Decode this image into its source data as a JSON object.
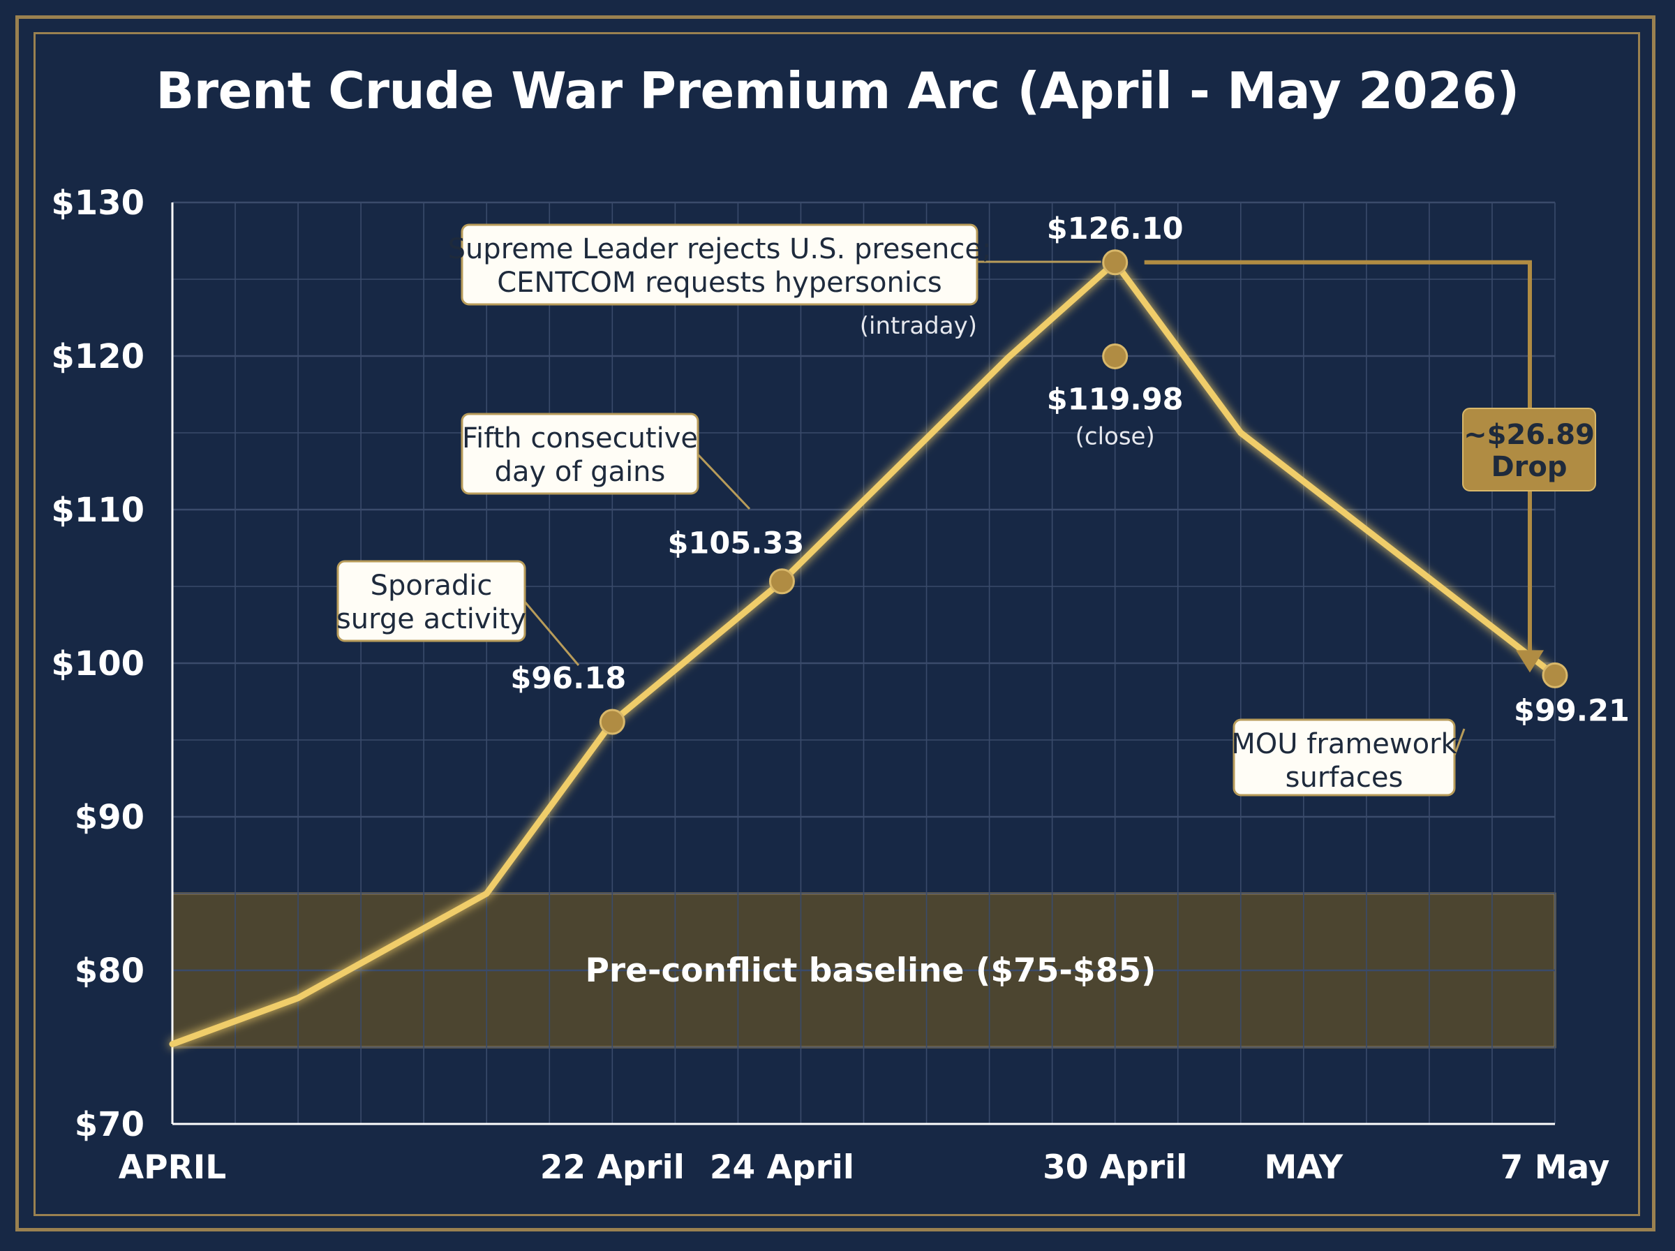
{
  "chart_data": {
    "type": "line",
    "title": "Brent Crude War Premium Arc (April - May 2026)",
    "y_ticks": [
      "$70",
      "$80",
      "$90",
      "$100",
      "$110",
      "$120",
      "$130"
    ],
    "ylim": [
      70,
      130
    ],
    "x_tick_labels": [
      {
        "label": "APRIL",
        "x": 1
      },
      {
        "label": "22 April",
        "x": 8
      },
      {
        "label": "24 April",
        "x": 10.7
      },
      {
        "label": "30 April",
        "x": 16
      },
      {
        "label": "MAY",
        "x": 19
      },
      {
        "label": "7 May",
        "x": 23
      }
    ],
    "xlim": [
      1,
      23
    ],
    "grid": true,
    "series": [
      {
        "values": [
          {
            "x": 1,
            "y": 75.2
          },
          {
            "x": 3,
            "y": 78.2
          },
          {
            "x": 6,
            "y": 85
          },
          {
            "x": 8,
            "y": 96.18
          },
          {
            "x": 10.7,
            "y": 105.33
          },
          {
            "x": 14.3,
            "y": 119.9
          },
          {
            "x": 16,
            "y": 126.1
          },
          {
            "x": 18,
            "y": 115
          },
          {
            "x": 23,
            "y": 99.21
          }
        ],
        "color": "#f0cd6a"
      }
    ],
    "bands": [
      {
        "y0": 75,
        "y1": 85,
        "label": "Pre-conflict baseline ($75-$85)",
        "color": "#4c4530"
      }
    ],
    "markers": [
      {
        "x": 8,
        "y": 96.18,
        "label": "$96.18"
      },
      {
        "x": 10.7,
        "y": 105.33,
        "label": "$105.33"
      },
      {
        "x": 16,
        "y": 126.1,
        "label": "$126.10"
      },
      {
        "x": 16,
        "y": 119.98,
        "label": "$119.98",
        "sublabel": "(close)"
      },
      {
        "x": 23,
        "y": 99.21,
        "label": "$99.21"
      }
    ],
    "annotations": [
      {
        "lines": [
          "Sporadic",
          "surge activity"
        ],
        "target_x": 8,
        "target_y": 96.18
      },
      {
        "lines": [
          "Fifth consecutive",
          "day of gains"
        ],
        "target_x": 10.7,
        "target_y": 105.33
      },
      {
        "lines": [
          "Supreme Leader rejects U.S. presence;",
          "CENTCOM requests hypersonics"
        ],
        "note": "(intraday)",
        "target_x": 16,
        "target_y": 126.1
      },
      {
        "lines": [
          "MOU framework",
          "surfaces"
        ],
        "target_x": 23,
        "target_y": 99.21
      }
    ],
    "drop": {
      "lines": [
        "~$26.89",
        "Drop"
      ],
      "from": 126.1,
      "to": 99.21
    }
  },
  "colors": {
    "background": "#172845",
    "frame": "#9a8150",
    "line": "#f0cd6a",
    "grid": "#3a4b6b",
    "callout_bg": "#fffdf6",
    "callout_border": "#b89c5a",
    "drop_box": "#b08c43"
  }
}
